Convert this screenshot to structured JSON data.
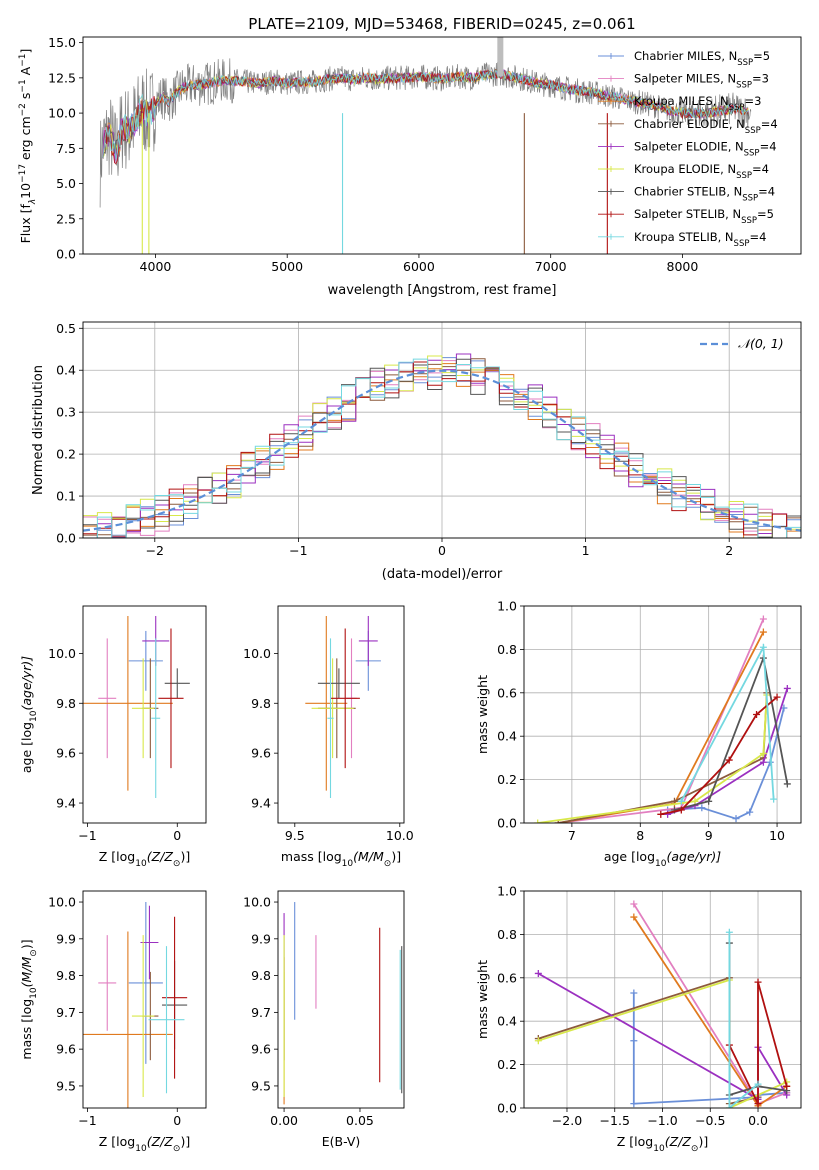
{
  "figure_title": "PLATE=2109, MJD=53468, FIBERID=0245, z=0.061",
  "colors": {
    "Chabrier MILES": "#6a8fd8",
    "Salpeter MILES": "#e27fc0",
    "Kroupa MILES": "#e07a1f",
    "Chabrier ELODIE": "#8c5a3c",
    "Salpeter ELODIE": "#9b30c0",
    "Kroupa ELODIE": "#d8e84a",
    "Chabrier STELIB": "#555555",
    "Salpeter STELIB": "#b01010",
    "Kroupa STELIB": "#74d8e0",
    "data": "#7f7f7f",
    "normal": "#5b8fd8"
  },
  "chart_data": [
    {
      "id": "spectrum",
      "type": "line",
      "title": "PLATE=2109, MJD=53468, FIBERID=0245, z=0.061",
      "xlabel": "wavelength [Angstrom, rest frame]",
      "ylabel_parts": [
        "Flux [f",
        "λ",
        "10",
        "−17",
        " erg cm",
        "−2",
        " s",
        "−1",
        " A",
        "−1",
        "]"
      ],
      "xlim": [
        3450,
        8900
      ],
      "ylim": [
        0,
        15.4
      ],
      "xticks": [
        4000,
        5000,
        6000,
        7000,
        8000
      ],
      "yticks": [
        "0.0",
        "2.5",
        "5.0",
        "7.5",
        "10.0",
        "12.5",
        "15.0"
      ],
      "ytick_values": [
        0,
        2.5,
        5,
        7.5,
        10,
        12.5,
        15
      ],
      "legend": [
        {
          "label": "Chabrier MILES, N",
          "sub": "SSP",
          "tail": "=5",
          "color": "#6a8fd8"
        },
        {
          "label": "Salpeter MILES, N",
          "sub": "SSP",
          "tail": "=3",
          "color": "#e27fc0"
        },
        {
          "label": "Kroupa MILES, N",
          "sub": "SSP",
          "tail": "=3",
          "color": "#e07a1f"
        },
        {
          "label": "Chabrier ELODIE, N",
          "sub": "SSP",
          "tail": "=4",
          "color": "#8c5a3c"
        },
        {
          "label": "Salpeter ELODIE, N",
          "sub": "SSP",
          "tail": "=4",
          "color": "#9b30c0"
        },
        {
          "label": "Kroupa ELODIE, N",
          "sub": "SSP",
          "tail": "=4",
          "color": "#d8e84a"
        },
        {
          "label": "Chabrier STELIB, N",
          "sub": "SSP",
          "tail": "=4",
          "color": "#555555"
        },
        {
          "label": "Salpeter STELIB, N",
          "sub": "SSP",
          "tail": "=5",
          "color": "#b01010"
        },
        {
          "label": "Kroupa STELIB, N",
          "sub": "SSP",
          "tail": "=4",
          "color": "#74d8e0"
        }
      ],
      "data_wavelength": [
        3580,
        3600,
        3650,
        3700,
        3750,
        3800,
        3850,
        3900,
        3950,
        4000,
        4050,
        4100,
        4200,
        4300,
        4400,
        4500,
        4600,
        4700,
        4800,
        4900,
        5000,
        5100,
        5200,
        5300,
        5400,
        5500,
        5600,
        5700,
        5800,
        5900,
        6000,
        6100,
        6200,
        6300,
        6400,
        6500,
        6600,
        6700,
        6800,
        6900,
        7000,
        7100,
        7200,
        7300,
        7400,
        7500,
        7600,
        7700,
        7800,
        7900,
        8000,
        8100,
        8200,
        8300,
        8400,
        8500
      ],
      "model_flux": [
        6.5,
        7.8,
        8.5,
        7.2,
        9.0,
        8.8,
        9.5,
        10.3,
        9.8,
        10.6,
        11.2,
        10.8,
        11.8,
        12.0,
        12.1,
        12.3,
        12.3,
        12.2,
        12.1,
        12.3,
        12.1,
        12.2,
        12.2,
        12.4,
        12.5,
        12.4,
        12.5,
        12.4,
        12.5,
        12.5,
        12.6,
        12.5,
        12.4,
        12.6,
        12.5,
        12.7,
        12.8,
        12.6,
        12.4,
        12.1,
        12.0,
        11.8,
        11.6,
        11.5,
        11.3,
        11.1,
        10.9,
        10.7,
        10.5,
        10.2,
        10.0,
        10.0,
        10.0,
        10.2,
        10.3,
        10.1
      ]
    },
    {
      "id": "residuals",
      "type": "line",
      "xlabel": "(data-model)/error",
      "ylabel": "Normed distribution",
      "xlim": [
        -2.5,
        2.5
      ],
      "ylim": [
        0,
        0.515
      ],
      "xticks": [
        "−2",
        "−1",
        "0",
        "1",
        "2"
      ],
      "xtick_values": [
        -2,
        -1,
        0,
        1,
        2
      ],
      "yticks": [
        "0.0",
        "0.1",
        "0.2",
        "0.3",
        "0.4",
        "0.5"
      ],
      "ytick_values": [
        0,
        0.1,
        0.2,
        0.3,
        0.4,
        0.5
      ],
      "legend": [
        {
          "label": "𝒩(0, 1)",
          "color": "#5b8fd8"
        }
      ],
      "normal_mean": 0,
      "normal_sigma": 1,
      "bin_width": 0.1
    },
    {
      "id": "age-vs-metallicity",
      "type": "scatter",
      "xlabel_parts": [
        "Z [log",
        "10",
        "(Z/Z",
        "⊙",
        ")]"
      ],
      "ylabel_parts": [
        "age  [log",
        "10",
        "(age/yr)]"
      ],
      "xlim": [
        -1.05,
        0.32
      ],
      "ylim": [
        9.32,
        10.19
      ],
      "xticks": [
        "−1",
        "0"
      ],
      "xtick_values": [
        -1,
        0
      ],
      "yticks": [
        "9.4",
        "9.6",
        "9.8",
        "10.0"
      ],
      "ytick_values": [
        9.4,
        9.6,
        9.8,
        10.0
      ],
      "points": [
        {
          "model": "Chabrier MILES",
          "x": -0.35,
          "y": 9.97,
          "xerr": 0.38,
          "yerr": 0.12
        },
        {
          "model": "Salpeter MILES",
          "x": -0.78,
          "y": 9.82,
          "xerr": 0.2,
          "yerr": 0.24
        },
        {
          "model": "Kroupa MILES",
          "x": -0.55,
          "y": 9.8,
          "xerr": 1.0,
          "yerr": 0.35
        },
        {
          "model": "Chabrier ELODIE",
          "x": -0.3,
          "y": 9.78,
          "xerr": 0.18,
          "yerr": 0.2
        },
        {
          "model": "Salpeter ELODIE",
          "x": -0.24,
          "y": 10.05,
          "xerr": 0.3,
          "yerr": 0.1
        },
        {
          "model": "Kroupa ELODIE",
          "x": -0.38,
          "y": 9.78,
          "xerr": 0.25,
          "yerr": 0.2
        },
        {
          "model": "Chabrier STELIB",
          "x": 0.0,
          "y": 9.88,
          "xerr": 0.28,
          "yerr": 0.06
        },
        {
          "model": "Salpeter STELIB",
          "x": -0.07,
          "y": 9.82,
          "xerr": 0.28,
          "yerr": 0.28
        },
        {
          "model": "Kroupa STELIB",
          "x": -0.24,
          "y": 9.74,
          "xerr": 0.1,
          "yerr": 0.32
        }
      ]
    },
    {
      "id": "age-vs-mass",
      "type": "scatter",
      "xlabel_parts": [
        "mass [log",
        "10",
        "(M/M",
        "⊙",
        ")]"
      ],
      "xlim": [
        9.42,
        10.02
      ],
      "ylim": [
        9.32,
        10.19
      ],
      "xticks": [
        "9.5",
        "10.0"
      ],
      "xtick_values": [
        9.5,
        10.0
      ],
      "yticks": [
        "9.4",
        "9.6",
        "9.8",
        "10.0"
      ],
      "ytick_values": [
        9.4,
        9.6,
        9.8,
        10.0
      ],
      "points": [
        {
          "model": "Chabrier MILES",
          "x": 9.85,
          "y": 9.97,
          "xerr": 0.12,
          "yerr": 0.12
        },
        {
          "model": "Salpeter MILES",
          "x": 9.77,
          "y": 9.82,
          "xerr": 0.05,
          "yerr": 0.24
        },
        {
          "model": "Kroupa MILES",
          "x": 9.65,
          "y": 9.8,
          "xerr": 0.2,
          "yerr": 0.35
        },
        {
          "model": "Chabrier ELODIE",
          "x": 9.7,
          "y": 9.78,
          "xerr": 0.18,
          "yerr": 0.2
        },
        {
          "model": "Salpeter ELODIE",
          "x": 9.85,
          "y": 10.05,
          "xerr": 0.09,
          "yerr": 0.1
        },
        {
          "model": "Kroupa ELODIE",
          "x": 9.68,
          "y": 9.78,
          "xerr": 0.2,
          "yerr": 0.2
        },
        {
          "model": "Chabrier STELIB",
          "x": 9.71,
          "y": 9.88,
          "xerr": 0.2,
          "yerr": 0.06
        },
        {
          "model": "Salpeter STELIB",
          "x": 9.74,
          "y": 9.82,
          "xerr": 0.14,
          "yerr": 0.28
        },
        {
          "model": "Kroupa STELIB",
          "x": 9.67,
          "y": 9.74,
          "xerr": 0.03,
          "yerr": 0.32
        }
      ]
    },
    {
      "id": "mass-weight-vs-age",
      "type": "line",
      "xlabel_parts": [
        "age  [log",
        "10",
        "(age/yr)]"
      ],
      "ylabel": "mass weight",
      "xlim": [
        6.3,
        10.35
      ],
      "ylim": [
        0,
        1.0
      ],
      "xticks": [
        "7",
        "8",
        "9",
        "10"
      ],
      "xtick_values": [
        7,
        8,
        9,
        10
      ],
      "yticks": [
        "0.0",
        "0.2",
        "0.4",
        "0.6",
        "0.8",
        "1.0"
      ],
      "ytick_values": [
        0,
        0.2,
        0.4,
        0.6,
        0.8,
        1.0
      ],
      "series": [
        {
          "model": "Chabrier MILES",
          "x": [
            8.4,
            8.9,
            9.4,
            9.6,
            9.9,
            10.1
          ],
          "y": [
            0.06,
            0.07,
            0.02,
            0.05,
            0.28,
            0.53
          ]
        },
        {
          "model": "Salpeter MILES",
          "x": [
            6.8,
            8.6,
            9.8
          ],
          "y": [
            0.0,
            0.07,
            0.94
          ]
        },
        {
          "model": "Kroupa MILES",
          "x": [
            6.8,
            8.5,
            9.8
          ],
          "y": [
            0.0,
            0.09,
            0.88
          ]
        },
        {
          "model": "Chabrier ELODIE",
          "x": [
            6.8,
            8.5,
            9.8,
            9.85
          ],
          "y": [
            0.0,
            0.1,
            0.3,
            0.6
          ]
        },
        {
          "model": "Salpeter ELODIE",
          "x": [
            8.4,
            8.8,
            9.8,
            10.15
          ],
          "y": [
            0.04,
            0.08,
            0.28,
            0.62
          ]
        },
        {
          "model": "Kroupa ELODIE",
          "x": [
            6.5,
            8.8,
            9.8,
            9.85
          ],
          "y": [
            0.0,
            0.1,
            0.32,
            0.59
          ]
        },
        {
          "model": "Chabrier STELIB",
          "x": [
            8.5,
            9.0,
            9.8,
            10.15
          ],
          "y": [
            0.06,
            0.1,
            0.76,
            0.18
          ]
        },
        {
          "model": "Salpeter STELIB",
          "x": [
            8.3,
            8.6,
            9.3,
            9.7,
            10.0
          ],
          "y": [
            0.04,
            0.06,
            0.29,
            0.5,
            0.58
          ]
        },
        {
          "model": "Kroupa STELIB",
          "x": [
            8.6,
            9.8,
            9.95
          ],
          "y": [
            0.1,
            0.81,
            0.11
          ]
        }
      ]
    },
    {
      "id": "mass-vs-metallicity",
      "type": "scatter",
      "xlabel_parts": [
        "Z [log",
        "10",
        "(Z/Z",
        "⊙",
        ")]"
      ],
      "ylabel_parts": [
        "mass [log",
        "10",
        "(M/M",
        "⊙",
        ")]"
      ],
      "xlim": [
        -1.05,
        0.32
      ],
      "ylim": [
        9.44,
        10.03
      ],
      "xticks": [
        "−1",
        "0"
      ],
      "xtick_values": [
        -1,
        0
      ],
      "yticks": [
        "9.5",
        "9.6",
        "9.7",
        "9.8",
        "9.9",
        "10.0"
      ],
      "ytick_values": [
        9.5,
        9.6,
        9.7,
        9.8,
        9.9,
        10.0
      ],
      "points": [
        {
          "model": "Chabrier MILES",
          "x": -0.35,
          "y": 9.78,
          "xerr": 0.38,
          "yerr": 0.22
        },
        {
          "model": "Salpeter MILES",
          "x": -0.78,
          "y": 9.78,
          "xerr": 0.2,
          "yerr": 0.13
        },
        {
          "model": "Kroupa MILES",
          "x": -0.55,
          "y": 9.64,
          "xerr": 1.0,
          "yerr": 0.28
        },
        {
          "model": "Chabrier ELODIE",
          "x": -0.3,
          "y": 9.69,
          "xerr": 0.18,
          "yerr": 0.12
        },
        {
          "model": "Salpeter ELODIE",
          "x": -0.31,
          "y": 9.89,
          "xerr": 0.2,
          "yerr": 0.1
        },
        {
          "model": "Kroupa ELODIE",
          "x": -0.38,
          "y": 9.69,
          "xerr": 0.25,
          "yerr": 0.22
        },
        {
          "model": "Chabrier STELIB",
          "x": -0.03,
          "y": 9.72,
          "xerr": 0.28,
          "yerr": 0.12
        },
        {
          "model": "Salpeter STELIB",
          "x": -0.03,
          "y": 9.74,
          "xerr": 0.28,
          "yerr": 0.22
        },
        {
          "model": "Kroupa STELIB",
          "x": -0.12,
          "y": 9.68,
          "xerr": 0.4,
          "yerr": 0.2
        }
      ]
    },
    {
      "id": "mass-vs-ebv",
      "type": "scatter",
      "xlabel": "E(B-V)",
      "xlim": [
        -0.004,
        0.079
      ],
      "ylim": [
        9.44,
        10.03
      ],
      "xticks": [
        "0.00",
        "0.05"
      ],
      "xtick_values": [
        0,
        0.05
      ],
      "yticks": [
        "9.5",
        "9.6",
        "9.7",
        "9.8",
        "9.9",
        "10.0"
      ],
      "ytick_values": [
        9.5,
        9.6,
        9.7,
        9.8,
        9.9,
        10.0
      ],
      "points": [
        {
          "model": "Chabrier MILES",
          "x": 0.007,
          "y": 9.84,
          "yerr": 0.16
        },
        {
          "model": "Salpeter MILES",
          "x": 0.021,
          "y": 9.81,
          "yerr": 0.1
        },
        {
          "model": "Kroupa MILES",
          "x": 0.0,
          "y": 9.65,
          "yerr": 0.2
        },
        {
          "model": "Chabrier ELODIE",
          "x": 0.0,
          "y": 9.69,
          "yerr": 0.12
        },
        {
          "model": "Salpeter ELODIE",
          "x": 0.0,
          "y": 9.89,
          "yerr": 0.08
        },
        {
          "model": "Kroupa ELODIE",
          "x": 0.0,
          "y": 9.69,
          "yerr": 0.22
        },
        {
          "model": "Chabrier STELIB",
          "x": 0.0775,
          "y": 9.68,
          "yerr": 0.2
        },
        {
          "model": "Salpeter STELIB",
          "x": 0.063,
          "y": 9.72,
          "yerr": 0.21
        },
        {
          "model": "Kroupa STELIB",
          "x": 0.0765,
          "y": 9.68,
          "yerr": 0.19
        }
      ]
    },
    {
      "id": "mass-weight-vs-metallicity",
      "type": "line",
      "xlabel_parts": [
        "Z [log",
        "10",
        "(Z/Z",
        "⊙",
        ")]"
      ],
      "ylabel": "mass weight",
      "xlim": [
        -2.45,
        0.45
      ],
      "ylim": [
        0,
        1.0
      ],
      "xticks": [
        "−2.0",
        "−1.5",
        "−1.0",
        "−0.5",
        "0.0"
      ],
      "xtick_values": [
        -2.0,
        -1.5,
        -1.0,
        -0.5,
        0.0
      ],
      "yticks": [
        "0.0",
        "0.2",
        "0.4",
        "0.6",
        "0.8",
        "1.0"
      ],
      "ytick_values": [
        0,
        0.2,
        0.4,
        0.6,
        0.8,
        1.0
      ],
      "series": [
        {
          "model": "Chabrier MILES",
          "x": [
            -1.3,
            -1.3,
            -1.3,
            0.0,
            0.0,
            0.3
          ],
          "y": [
            0.53,
            0.31,
            0.02,
            0.05,
            0.06,
            0.07
          ]
        },
        {
          "model": "Salpeter MILES",
          "x": [
            -1.3,
            0.0,
            0.3
          ],
          "y": [
            0.94,
            0.02,
            0.07
          ]
        },
        {
          "model": "Kroupa MILES",
          "x": [
            -1.3,
            0.0,
            0.3
          ],
          "y": [
            0.88,
            0.01,
            0.1
          ]
        },
        {
          "model": "Chabrier ELODIE",
          "x": [
            -2.3,
            -0.3,
            -0.3,
            0.0
          ],
          "y": [
            0.32,
            0.6,
            0.02,
            0.05
          ]
        },
        {
          "model": "Salpeter ELODIE",
          "x": [
            -2.3,
            0.0,
            0.0,
            0.3
          ],
          "y": [
            0.62,
            0.04,
            0.28,
            0.06
          ]
        },
        {
          "model": "Kroupa ELODIE",
          "x": [
            -2.3,
            -0.3,
            -0.3,
            0.3
          ],
          "y": [
            0.31,
            0.59,
            0.0,
            0.12
          ]
        },
        {
          "model": "Chabrier STELIB",
          "x": [
            -0.3,
            -0.3,
            0.0,
            0.3
          ],
          "y": [
            0.76,
            0.06,
            0.1,
            0.08
          ]
        },
        {
          "model": "Salpeter STELIB",
          "x": [
            -0.3,
            0.0,
            0.0,
            0.3
          ],
          "y": [
            0.29,
            0.02,
            0.58,
            0.1
          ]
        },
        {
          "model": "Kroupa STELIB",
          "x": [
            -0.3,
            -0.3,
            0.0
          ],
          "y": [
            0.81,
            0.0,
            0.11
          ]
        }
      ]
    }
  ]
}
